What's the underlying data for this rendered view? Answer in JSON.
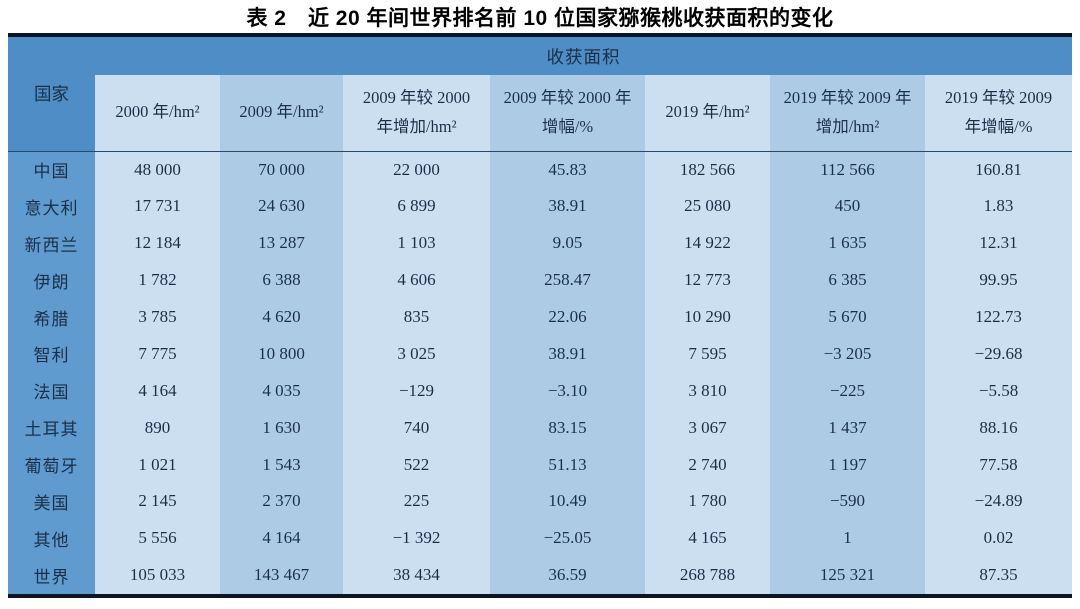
{
  "title": "表 2　近 20 年间世界排名前 10 位国家猕猴桃收获面积的变化",
  "table": {
    "country_header": "国家",
    "group_header": "收获面积",
    "columns": [
      "2000 年/hm²",
      "2009 年/hm²",
      "2009 年较 2000 年增加/hm²",
      "2009 年较 2000 年增幅/%",
      "2019 年/hm²",
      "2019 年较 2009 年增加/hm²",
      "2019 年较 2009 年增幅/%"
    ],
    "rows": [
      {
        "country": "中国",
        "values": [
          "48 000",
          "70 000",
          "22 000",
          "45.83",
          "182 566",
          "112 566",
          "160.81"
        ]
      },
      {
        "country": "意大利",
        "values": [
          "17 731",
          "24 630",
          "6 899",
          "38.91",
          "25 080",
          "450",
          "1.83"
        ]
      },
      {
        "country": "新西兰",
        "values": [
          "12 184",
          "13 287",
          "1 103",
          "9.05",
          "14 922",
          "1 635",
          "12.31"
        ]
      },
      {
        "country": "伊朗",
        "values": [
          "1 782",
          "6 388",
          "4 606",
          "258.47",
          "12 773",
          "6 385",
          "99.95"
        ]
      },
      {
        "country": "希腊",
        "values": [
          "3 785",
          "4 620",
          "835",
          "22.06",
          "10 290",
          "5 670",
          "122.73"
        ]
      },
      {
        "country": "智利",
        "values": [
          "7 775",
          "10 800",
          "3 025",
          "38.91",
          "7 595",
          "−3 205",
          "−29.68"
        ]
      },
      {
        "country": "法国",
        "values": [
          "4 164",
          "4 035",
          "−129",
          "−3.10",
          "3 810",
          "−225",
          "−5.58"
        ]
      },
      {
        "country": "土耳其",
        "values": [
          "890",
          "1 630",
          "740",
          "83.15",
          "3 067",
          "1 437",
          "88.16"
        ]
      },
      {
        "country": "葡萄牙",
        "values": [
          "1 021",
          "1 543",
          "522",
          "51.13",
          "2 740",
          "1 197",
          "77.58"
        ]
      },
      {
        "country": "美国",
        "values": [
          "2 145",
          "2 370",
          "225",
          "10.49",
          "1 780",
          "−590",
          "−24.89"
        ]
      },
      {
        "country": "其他",
        "values": [
          "5 556",
          "4 164",
          "−1 392",
          "−25.05",
          "4 165",
          "1",
          "0.02"
        ]
      },
      {
        "country": "世界",
        "values": [
          "105 033",
          "143 467",
          "38 434",
          "36.59",
          "268 788",
          "125 321",
          "87.35"
        ]
      }
    ]
  },
  "colors": {
    "header_blue": "#4e8dc5",
    "country_column_blue": "#5f9bcf",
    "column_light": "#cbdff0",
    "column_medium": "#aecbe5",
    "rule_black": "#0d1620",
    "text_navy": "#1b3048"
  }
}
